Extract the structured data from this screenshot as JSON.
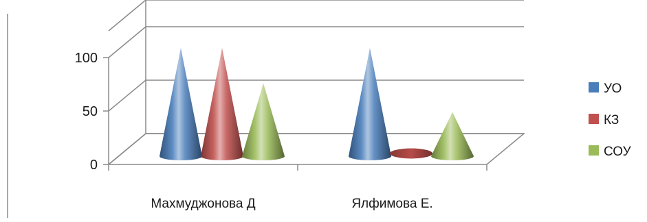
{
  "chart_data": {
    "type": "bar",
    "shape": "cone",
    "view": "3d",
    "categories": [
      "Махмуджонова Д",
      "Ялфимова Е."
    ],
    "series": [
      {
        "name": "УО",
        "values": [
          100,
          100
        ],
        "color": "#4a7ebb"
      },
      {
        "name": "КЗ",
        "values": [
          100,
          0
        ],
        "color": "#c0504d"
      },
      {
        "name": "СОУ",
        "values": [
          67,
          40
        ],
        "color": "#9bbb59"
      }
    ],
    "yticks": [
      0,
      50,
      100
    ],
    "ylim": [
      0,
      100
    ],
    "grid": true,
    "legend": "right"
  }
}
